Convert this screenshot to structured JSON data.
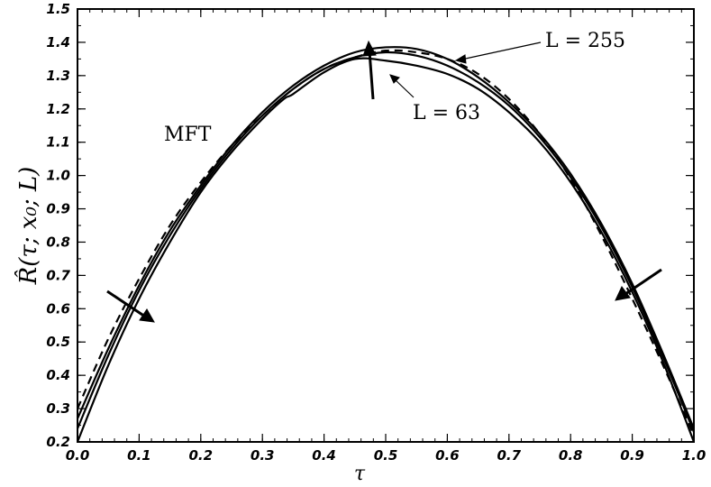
{
  "chart_data": {
    "type": "line",
    "title": "",
    "xlabel": "τ",
    "ylabel": "R̂(τ; x₀; L)",
    "xlim": [
      0.0,
      1.0
    ],
    "ylim": [
      0.2,
      1.5
    ],
    "x_ticks": [
      "0.0",
      "0.1",
      "0.2",
      "0.3",
      "0.4",
      "0.5",
      "0.6",
      "0.7",
      "0.8",
      "0.9",
      "1.0"
    ],
    "y_ticks": [
      "0.2",
      "0.3",
      "0.4",
      "0.5",
      "0.6",
      "0.7",
      "0.8",
      "0.9",
      "1.0",
      "1.1",
      "1.2",
      "1.3",
      "1.4",
      "1.5"
    ],
    "grid": false,
    "legend": "none",
    "series": [
      {
        "name": "MFT",
        "style": "dashed",
        "x": [
          0.0,
          0.05,
          0.1,
          0.15,
          0.2,
          0.25,
          0.3,
          0.35,
          0.4,
          0.45,
          0.5,
          0.55,
          0.6,
          0.65,
          0.7,
          0.75,
          0.8,
          0.85,
          0.9,
          0.95,
          1.0
        ],
        "y": [
          0.3,
          0.51,
          0.69,
          0.85,
          0.98,
          1.09,
          1.18,
          1.26,
          1.32,
          1.355,
          1.375,
          1.37,
          1.35,
          1.305,
          1.23,
          1.125,
          0.99,
          0.82,
          0.63,
          0.43,
          0.22
        ]
      },
      {
        "name": "",
        "style": "solid",
        "x": [
          0.0,
          0.05,
          0.1,
          0.15,
          0.2,
          0.25,
          0.3,
          0.335,
          0.35,
          0.4,
          0.45,
          0.5,
          0.55,
          0.6,
          0.65,
          0.7,
          0.75,
          0.8,
          0.85,
          0.9,
          0.95,
          1.0
        ],
        "y": [
          0.2,
          0.43,
          0.63,
          0.8,
          0.95,
          1.07,
          1.17,
          1.23,
          1.245,
          1.31,
          1.35,
          1.345,
          1.33,
          1.305,
          1.26,
          1.19,
          1.1,
          0.98,
          0.83,
          0.65,
          0.44,
          0.2
        ]
      },
      {
        "name": "",
        "style": "solid",
        "x": [
          0.0,
          0.05,
          0.1,
          0.15,
          0.2,
          0.25,
          0.3,
          0.35,
          0.4,
          0.45,
          0.5,
          0.55,
          0.6,
          0.65,
          0.7,
          0.75,
          0.8,
          0.85,
          0.9,
          0.95,
          1.0
        ],
        "y": [
          0.24,
          0.46,
          0.655,
          0.82,
          0.96,
          1.08,
          1.18,
          1.26,
          1.32,
          1.355,
          1.37,
          1.36,
          1.33,
          1.28,
          1.21,
          1.115,
          0.995,
          0.845,
          0.665,
          0.455,
          0.23
        ]
      },
      {
        "name": "",
        "style": "solid",
        "x": [
          0.0,
          0.05,
          0.1,
          0.15,
          0.2,
          0.25,
          0.3,
          0.35,
          0.4,
          0.45,
          0.5,
          0.55,
          0.6,
          0.65,
          0.7,
          0.75,
          0.8,
          0.85,
          0.9,
          0.95,
          1.0
        ],
        "y": [
          0.27,
          0.48,
          0.67,
          0.835,
          0.97,
          1.09,
          1.19,
          1.27,
          1.33,
          1.37,
          1.385,
          1.38,
          1.35,
          1.295,
          1.22,
          1.125,
          1.005,
          0.855,
          0.675,
          0.465,
          0.24
        ]
      }
    ],
    "annotations": [
      {
        "text": "L = 255"
      },
      {
        "text": "L = 63"
      },
      {
        "text": "MFT"
      }
    ]
  }
}
